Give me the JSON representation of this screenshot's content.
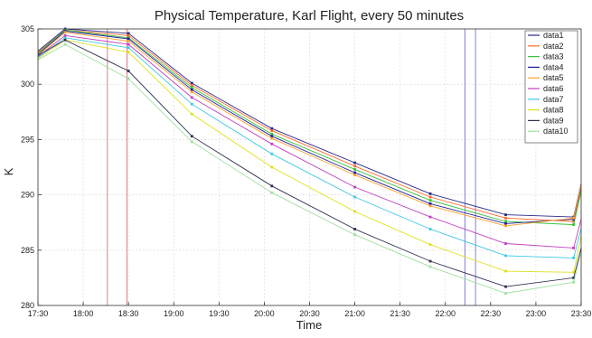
{
  "chart_data": {
    "type": "line",
    "title": "Physical Temperature, Karl Flight, every 50 minutes",
    "xlabel": "Time",
    "ylabel": "K",
    "xlim": [
      "17:30",
      "23:30"
    ],
    "ylim": [
      280,
      305
    ],
    "x_ticks": [
      "17:30",
      "18:00",
      "18:30",
      "19:00",
      "19:30",
      "20:00",
      "20:30",
      "21:00",
      "21:30",
      "22:00",
      "22:30",
      "23:00",
      "23:30"
    ],
    "y_ticks": [
      280,
      285,
      290,
      295,
      300,
      305
    ],
    "grid": true,
    "legend_position": "top-right",
    "x": [
      "17:30",
      "17:48",
      "18:30",
      "19:12",
      "20:05",
      "21:00",
      "21:50",
      "22:40",
      "23:25",
      "23:30"
    ],
    "series": [
      {
        "name": "data1",
        "color": "#2a2a8a",
        "values": [
          303.0,
          305.0,
          304.6,
          300.1,
          296.0,
          292.9,
          290.1,
          288.2,
          288.0,
          291.0
        ]
      },
      {
        "name": "data2",
        "color": "#ff6a2a",
        "values": [
          302.9,
          304.9,
          304.4,
          299.9,
          295.8,
          292.6,
          289.8,
          287.9,
          287.6,
          290.6
        ]
      },
      {
        "name": "data3",
        "color": "#3cc03c",
        "values": [
          302.8,
          304.9,
          304.2,
          299.7,
          295.5,
          292.3,
          289.5,
          287.6,
          287.3,
          290.3
        ]
      },
      {
        "name": "data4",
        "color": "#1f1f9a",
        "values": [
          302.7,
          304.8,
          304.1,
          299.5,
          295.3,
          292.0,
          289.2,
          287.4,
          287.8,
          290.8
        ]
      },
      {
        "name": "data5",
        "color": "#ffa030",
        "values": [
          302.6,
          304.7,
          303.9,
          299.3,
          295.1,
          291.8,
          289.0,
          287.2,
          287.9,
          290.9
        ]
      },
      {
        "name": "data6",
        "color": "#c040c0",
        "values": [
          302.5,
          304.4,
          303.6,
          298.8,
          294.6,
          290.7,
          288.0,
          285.6,
          285.2,
          287.8
        ]
      },
      {
        "name": "data7",
        "color": "#40c8e0",
        "values": [
          302.4,
          304.2,
          303.3,
          298.2,
          293.7,
          289.8,
          286.9,
          284.5,
          284.3,
          287.0
        ]
      },
      {
        "name": "data8",
        "color": "#e0e020",
        "values": [
          302.3,
          304.0,
          302.9,
          297.3,
          292.5,
          288.5,
          285.5,
          283.1,
          283.0,
          286.3
        ]
      },
      {
        "name": "data9",
        "color": "#303050",
        "values": [
          302.6,
          304.0,
          301.2,
          295.3,
          290.8,
          286.9,
          284.0,
          281.7,
          282.5,
          285.2
        ]
      },
      {
        "name": "data10",
        "color": "#a0e0a0",
        "values": [
          302.2,
          303.6,
          300.5,
          294.8,
          290.2,
          286.4,
          283.5,
          281.1,
          282.1,
          284.8
        ]
      }
    ],
    "vertical_markers": [
      {
        "x": "18:16",
        "color": "#e08080"
      },
      {
        "x": "18:29",
        "color": "#e08080"
      },
      {
        "x": "22:13",
        "color": "#8080e0"
      },
      {
        "x": "22:20",
        "color": "#8080e0"
      }
    ]
  }
}
